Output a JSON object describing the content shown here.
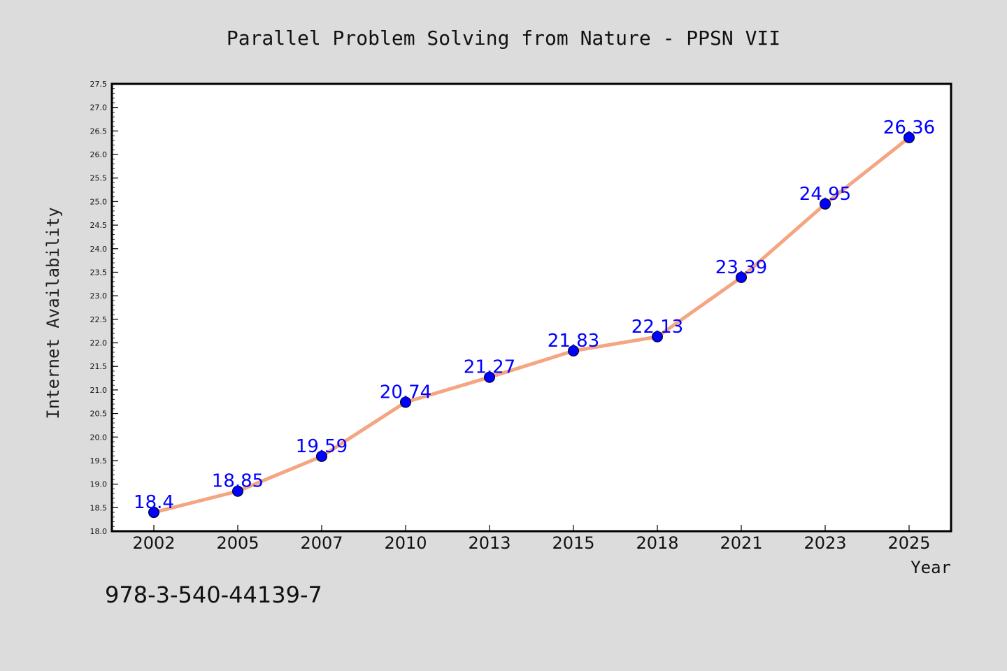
{
  "chart_data": {
    "type": "line",
    "title": "Parallel Problem Solving from Nature - PPSN VII",
    "xlabel": "Year",
    "ylabel": "Internet Availability",
    "categories": [
      "2002",
      "2005",
      "2007",
      "2010",
      "2013",
      "2015",
      "2018",
      "2021",
      "2023",
      "2025"
    ],
    "series": [
      {
        "values": [
          18.4,
          18.85,
          19.59,
          20.74,
          21.27,
          21.83,
          22.13,
          23.39,
          24.95,
          26.36
        ]
      }
    ],
    "data_labels": [
      "18.4",
      "18.85",
      "19.59",
      "20.74",
      "21.27",
      "21.83",
      "22.13",
      "23.39",
      "24.95",
      "26.36"
    ],
    "ylim": [
      18.0,
      27.5
    ],
    "yticks": [
      "18.0",
      "18.5",
      "19.0",
      "19.5",
      "20.0",
      "20.5",
      "21.0",
      "21.5",
      "22.0",
      "22.5",
      "23.0",
      "23.5",
      "24.0",
      "24.5",
      "25.0",
      "25.5",
      "26.0",
      "26.5",
      "27.0",
      "27.5"
    ],
    "grid": false,
    "colors": {
      "line": "#f4a582",
      "marker": "#0000ff",
      "label": "#0000ff",
      "background": "#dcdcdc",
      "plot_bg": "#ffffff"
    }
  },
  "footer": {
    "isbn": "978-3-540-44139-7"
  }
}
